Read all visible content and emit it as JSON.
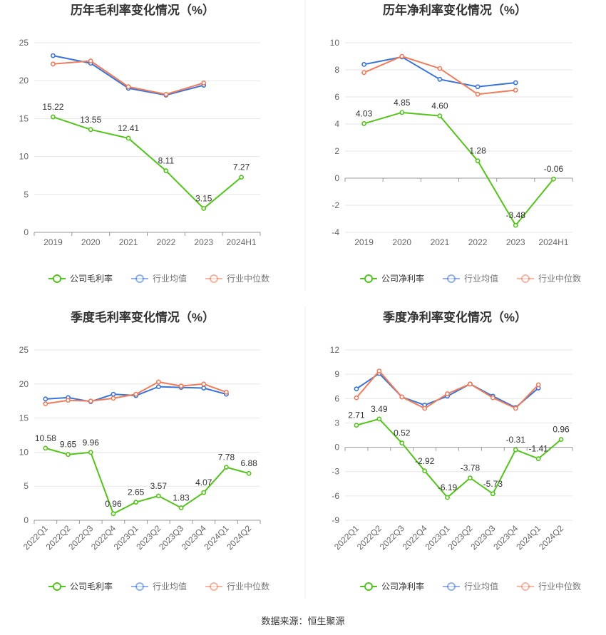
{
  "source_label": "数据来源：恒生聚源",
  "colors": {
    "company": "#52c41a",
    "avg": "#3a74d9",
    "median": "#f07c5a",
    "grid": "#e6e6e6",
    "axis": "#999999"
  },
  "chart_data": [
    {
      "type": "line",
      "title": "历年毛利率变化情况（%）",
      "categories": [
        "2019",
        "2020",
        "2021",
        "2022",
        "2023",
        "2024H1"
      ],
      "ylim": [
        0,
        25
      ],
      "yticks": [
        0,
        5,
        10,
        15,
        20,
        25
      ],
      "grid": true,
      "legend_position": "bottom",
      "series": [
        {
          "name": "公司毛利率",
          "color": "#52c41a",
          "values": [
            15.22,
            13.55,
            12.41,
            8.11,
            3.15,
            7.27
          ],
          "labels": [
            "15.22",
            "13.55",
            "12.41",
            "8.11",
            "3.15",
            "7.27"
          ]
        },
        {
          "name": "行业均值",
          "color": "#3a74d9",
          "values": [
            23.3,
            22.3,
            19.0,
            18.1,
            19.4,
            null
          ]
        },
        {
          "name": "行业中位数",
          "color": "#f07c5a",
          "values": [
            22.2,
            22.6,
            19.2,
            18.2,
            19.7,
            null
          ]
        }
      ]
    },
    {
      "type": "line",
      "title": "历年净利率变化情况（%）",
      "categories": [
        "2019",
        "2020",
        "2021",
        "2022",
        "2023",
        "2024H1"
      ],
      "ylim": [
        -4,
        10
      ],
      "yticks": [
        -4,
        -2,
        0,
        2,
        4,
        6,
        8,
        10
      ],
      "grid": true,
      "legend_position": "bottom",
      "series": [
        {
          "name": "公司净利率",
          "color": "#52c41a",
          "values": [
            4.03,
            4.85,
            4.6,
            1.28,
            -3.48,
            -0.06
          ],
          "labels": [
            "4.03",
            "4.85",
            "4.60",
            "1.28",
            "-3.48",
            "-0.06"
          ]
        },
        {
          "name": "行业均值",
          "color": "#3a74d9",
          "values": [
            8.4,
            8.95,
            7.3,
            6.75,
            7.05,
            null
          ]
        },
        {
          "name": "行业中位数",
          "color": "#f07c5a",
          "values": [
            7.8,
            9.0,
            8.1,
            6.2,
            6.5,
            null
          ]
        }
      ]
    },
    {
      "type": "line",
      "title": "季度毛利率变化情况（%）",
      "categories": [
        "2022Q1",
        "2022Q2",
        "2022Q3",
        "2022Q4",
        "2023Q1",
        "2023Q2",
        "2023Q3",
        "2023Q4",
        "2024Q1",
        "2024Q2"
      ],
      "ylim": [
        0,
        25
      ],
      "yticks": [
        0,
        5,
        10,
        15,
        20,
        25
      ],
      "grid": true,
      "legend_position": "bottom",
      "series": [
        {
          "name": "公司毛利率",
          "color": "#52c41a",
          "values": [
            10.58,
            9.65,
            9.96,
            0.96,
            2.65,
            3.57,
            1.83,
            4.07,
            7.78,
            6.88
          ],
          "labels": [
            "10.58",
            "9.65",
            "9.96",
            "0.96",
            "2.65",
            "3.57",
            "1.83",
            "4.07",
            "7.78",
            "6.88"
          ]
        },
        {
          "name": "行业均值",
          "color": "#3a74d9",
          "values": [
            17.8,
            18.0,
            17.4,
            18.5,
            18.3,
            19.6,
            19.5,
            19.4,
            18.5,
            null
          ]
        },
        {
          "name": "行业中位数",
          "color": "#f07c5a",
          "values": [
            17.1,
            17.6,
            17.5,
            17.9,
            18.5,
            20.3,
            19.7,
            20.0,
            18.8,
            null
          ]
        }
      ]
    },
    {
      "type": "line",
      "title": "季度净利率变化情况（%）",
      "categories": [
        "2022Q1",
        "2022Q2",
        "2022Q3",
        "2022Q4",
        "2023Q1",
        "2023Q2",
        "2023Q3",
        "2023Q4",
        "2024Q1",
        "2024Q2"
      ],
      "ylim": [
        -9,
        12
      ],
      "yticks": [
        -9,
        -6,
        -3,
        0,
        3,
        6,
        9,
        12
      ],
      "grid": true,
      "legend_position": "bottom",
      "series": [
        {
          "name": "公司净利率",
          "color": "#52c41a",
          "values": [
            2.71,
            3.49,
            0.52,
            -2.92,
            -6.19,
            -3.78,
            -5.73,
            -0.31,
            -1.41,
            0.96
          ],
          "labels": [
            "2.71",
            "3.49",
            "0.52",
            "-2.92",
            "-6.19",
            "-3.78",
            "-5.73",
            "-0.31",
            "-1.41",
            "0.96"
          ]
        },
        {
          "name": "行业均值",
          "color": "#3a74d9",
          "values": [
            7.2,
            9.1,
            6.2,
            5.2,
            6.3,
            7.8,
            6.3,
            4.9,
            7.3,
            null
          ]
        },
        {
          "name": "行业中位数",
          "color": "#f07c5a",
          "values": [
            6.1,
            9.4,
            6.2,
            4.8,
            6.6,
            7.8,
            6.1,
            4.8,
            7.7,
            null
          ]
        }
      ]
    }
  ]
}
